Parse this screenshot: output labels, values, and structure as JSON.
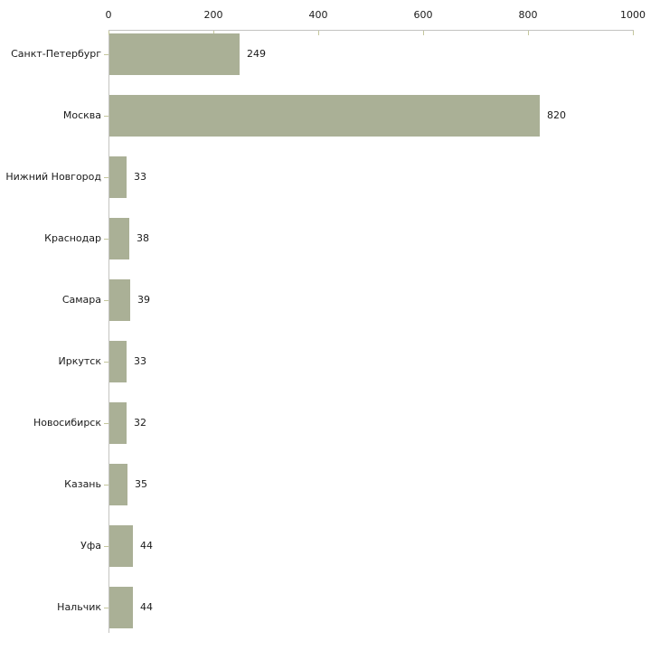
{
  "chart_data": {
    "type": "bar",
    "orientation": "horizontal",
    "title": "",
    "xlabel": "",
    "ylabel": "",
    "categories": [
      "Санкт-Петербург",
      "Москва",
      "Нижний Новгород",
      "Краснодар",
      "Самара",
      "Иркутск",
      "Новосибирск",
      "Казань",
      "Уфа",
      "Нальчик"
    ],
    "values": [
      249,
      820,
      33,
      38,
      39,
      33,
      32,
      35,
      44,
      44
    ],
    "data_labels": [
      "249",
      "820",
      "33",
      "38",
      "39",
      "33",
      "32",
      "35",
      "44",
      "44"
    ],
    "xlim": [
      0,
      1000
    ],
    "x_ticks": [
      0,
      200,
      400,
      600,
      800,
      1000
    ],
    "x_tick_labels": [
      "0",
      "200",
      "400",
      "600",
      "800",
      "1000"
    ],
    "grid": false,
    "legend": false,
    "axis_position": "top",
    "colors": {
      "bar_fill": "#aab096",
      "axis_line": "#c3c3c0",
      "tick_mark": "#c4c69c",
      "text": "#1a1a1a",
      "background": "#ffffff"
    }
  }
}
